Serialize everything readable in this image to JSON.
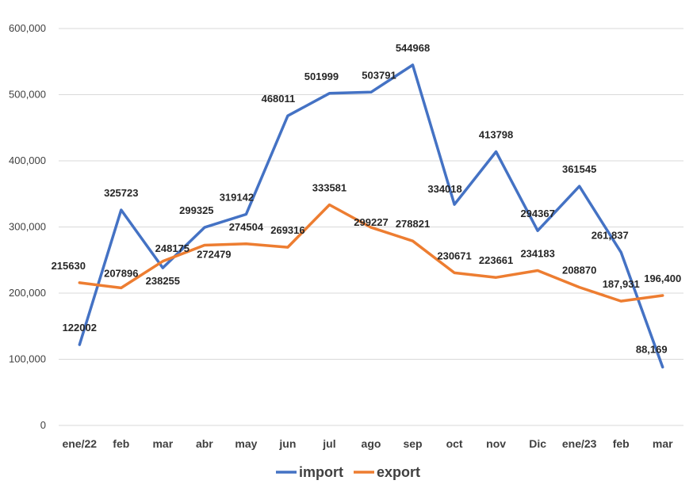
{
  "chart_data": {
    "type": "line",
    "title": "",
    "xlabel": "",
    "ylabel": "",
    "categories": [
      "ene/22",
      "feb",
      "mar",
      "abr",
      "may",
      "jun",
      "jul",
      "ago",
      "sep",
      "oct",
      "nov",
      "Dic",
      "ene/23",
      "feb",
      "mar"
    ],
    "ylim": [
      0,
      600000
    ],
    "yticks": [
      {
        "value": 0,
        "label": "0"
      },
      {
        "value": 100000,
        "label": "100,000"
      },
      {
        "value": 200000,
        "label": "200,000"
      },
      {
        "value": 300000,
        "label": "300,000"
      },
      {
        "value": 400000,
        "label": "400,000"
      },
      {
        "value": 500000,
        "label": "500,000"
      },
      {
        "value": 600000,
        "label": "600,000"
      }
    ],
    "grid": true,
    "legend_position": "bottom",
    "series": [
      {
        "name": "import",
        "color": "#4472c4",
        "values": [
          122002,
          325723,
          238255,
          299325,
          319142,
          468011,
          501999,
          503791,
          544968,
          334018,
          413798,
          294367,
          361545,
          261837,
          88169
        ],
        "labels": [
          "122002",
          "325723",
          "238255",
          "299325",
          "319142",
          "468011",
          "501999",
          "503791",
          "544968",
          "334018",
          "413798",
          "294367",
          "361545",
          "261,837",
          "88,169"
        ]
      },
      {
        "name": "export",
        "color": "#ed7d31",
        "values": [
          215630,
          207896,
          248175,
          272479,
          274504,
          269316,
          333581,
          299227,
          278821,
          230671,
          223661,
          234183,
          208870,
          187931,
          196400
        ],
        "labels": [
          "215630",
          "207896",
          "248175",
          "272479",
          "274504",
          "269316",
          "333581",
          "299227",
          "278821",
          "230671",
          "223661",
          "234183",
          "208870",
          "187,931",
          "196,400"
        ]
      }
    ]
  }
}
